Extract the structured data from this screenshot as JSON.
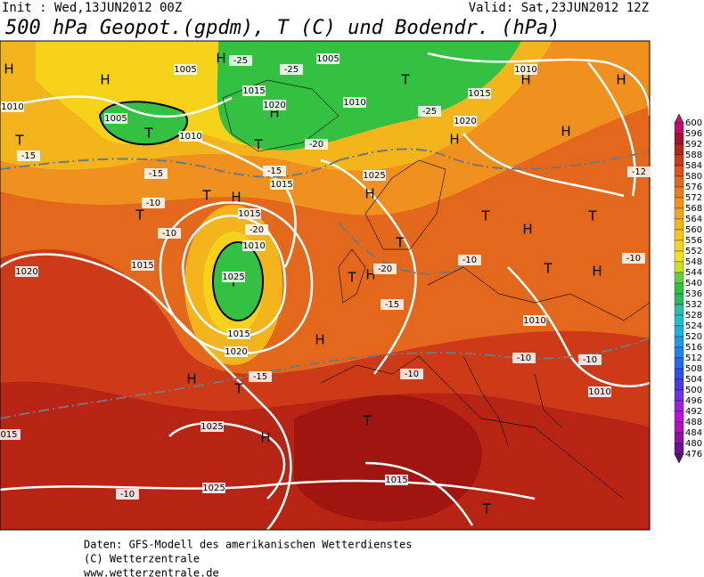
{
  "header": {
    "init": "Init : Wed,13JUN2012 00Z",
    "valid": "Valid: Sat,23JUN2012 12Z",
    "title": "500 hPa Geopot.(gpdm), T (C) und Bodendr. (hPa)"
  },
  "legend": {
    "levels": [
      600,
      596,
      592,
      588,
      584,
      580,
      576,
      572,
      568,
      564,
      560,
      556,
      552,
      548,
      544,
      540,
      536,
      532,
      528,
      524,
      520,
      516,
      512,
      508,
      504,
      500,
      496,
      492,
      488,
      484,
      480,
      476
    ]
  },
  "map_labels": {
    "pressure_centers": [
      "H",
      "H",
      "H",
      "T",
      "H",
      "H",
      "T",
      "T",
      "H",
      "T",
      "H",
      "H",
      "T",
      "H",
      "T",
      "H",
      "T",
      "H",
      "T",
      "T",
      "T",
      "H",
      "T",
      "H",
      "T",
      "H",
      "H",
      "T",
      "T",
      "H",
      "T"
    ],
    "isobars": [
      "1010",
      "1005",
      "1010",
      "1015",
      "1020",
      "1005",
      "1010",
      "1015",
      "1020",
      "1010",
      "1025",
      "1015",
      "1015",
      "1010",
      "1025",
      "1020",
      "1015",
      "1015",
      "1020",
      "1010",
      "1010",
      "1025",
      "1025",
      "1015",
      "015",
      "1005"
    ],
    "isotherms": [
      "-15",
      "-15",
      "-10",
      "-10",
      "-15",
      "-20",
      "-20",
      "-25",
      "-25",
      "-25",
      "-20",
      "-15",
      "-10",
      "-10",
      "-12",
      "-15",
      "-10",
      "-10",
      "-10",
      "-10"
    ]
  },
  "footer": {
    "lines": [
      "Daten: GFS-Modell des amerikanischen Wetterdienstes",
      "(C) Wetterzentrale",
      "www.wetterzentrale.de"
    ]
  }
}
